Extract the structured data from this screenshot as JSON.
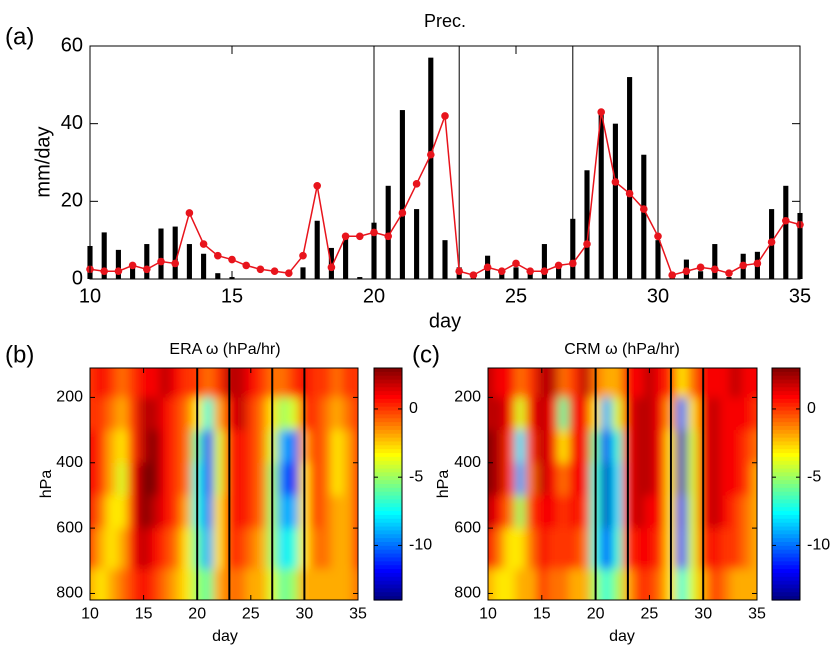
{
  "chart_data": [
    {
      "type": "bar",
      "label": "(a)",
      "title": "Prec.",
      "ylabel": "mm/day",
      "xlabel": "day",
      "x": [
        10,
        10.5,
        11,
        11.5,
        12,
        12.5,
        13,
        13.5,
        14,
        14.5,
        15,
        15.5,
        16,
        16.5,
        17,
        17.5,
        18,
        18.5,
        19,
        19.5,
        20,
        20.5,
        21,
        21.5,
        22,
        22.5,
        23,
        23.5,
        24,
        24.5,
        25,
        25.5,
        26,
        26.5,
        27,
        27.5,
        28,
        28.5,
        29,
        29.5,
        30,
        30.5,
        31,
        31.5,
        32,
        32.5,
        33,
        33.5,
        34,
        34.5,
        35
      ],
      "series": [
        {
          "kind": "bar",
          "color": "#000000",
          "values": [
            8.5,
            12,
            7.5,
            4,
            9,
            13,
            13.5,
            9,
            6.5,
            1.5,
            0.5,
            0,
            0,
            0,
            0,
            3,
            15,
            8,
            11,
            0.5,
            14.5,
            24,
            43.5,
            18,
            57,
            10,
            3,
            1,
            6,
            2,
            3,
            2,
            9,
            3,
            15.5,
            28,
            43.5,
            40,
            52,
            32,
            10,
            0.5,
            5,
            2,
            9,
            0.5,
            6.5,
            7,
            18,
            24,
            17
          ]
        },
        {
          "kind": "line",
          "color": "#e8141c",
          "values": [
            2.5,
            2,
            2,
            3.5,
            2.5,
            4.5,
            4,
            17,
            9,
            6,
            5,
            3.5,
            2.5,
            2,
            1.5,
            6,
            24,
            3,
            11,
            11,
            12,
            11,
            17,
            24.5,
            32,
            42,
            2,
            1,
            3,
            2,
            4,
            2,
            2,
            3.5,
            4,
            9,
            43,
            25,
            22,
            18,
            11,
            1,
            2,
            3,
            2.5,
            1.5,
            3.5,
            4,
            9.5,
            15,
            14
          ]
        }
      ],
      "xlim": [
        10,
        35
      ],
      "xticks": [
        10,
        15,
        20,
        25,
        30,
        35
      ],
      "ylim": [
        0,
        60
      ],
      "yticks": [
        0,
        20,
        40,
        60
      ],
      "vlines": [
        20,
        23,
        27,
        30
      ]
    },
    {
      "type": "contour",
      "label": "(b)",
      "title": "ERA ω (hPa/hr)",
      "ylabel": "hPa",
      "xlabel": "day",
      "x": [
        10,
        11,
        12,
        13,
        14,
        15,
        16,
        17,
        18,
        19,
        20,
        21,
        22,
        23,
        24,
        25,
        26,
        27,
        28,
        29,
        30,
        31,
        32,
        33,
        34,
        35
      ],
      "y": [
        150,
        250,
        350,
        450,
        550,
        650,
        800
      ],
      "z": [
        [
          0,
          1,
          0,
          -1,
          0,
          1,
          1,
          2,
          1,
          0,
          0,
          -1,
          0,
          2,
          2,
          1,
          0,
          -1,
          -1,
          0,
          1,
          0,
          0,
          -1,
          0,
          0
        ],
        [
          0,
          0,
          -1,
          -2,
          0,
          2,
          2,
          1,
          0,
          -1,
          -3,
          -7,
          -2,
          1,
          2,
          0,
          -1,
          -3,
          -5,
          -4,
          0,
          0,
          -1,
          -2,
          -1,
          0
        ],
        [
          1,
          0,
          -2,
          -3,
          0,
          2,
          3,
          1,
          0,
          -1,
          -6,
          -11,
          -4,
          0,
          1,
          0,
          -1,
          -4,
          -9,
          -10,
          -2,
          0,
          -1,
          -3,
          -2,
          0
        ],
        [
          1,
          0,
          -2,
          -4,
          1,
          3,
          3,
          1,
          0,
          -1,
          -7,
          -11,
          -4,
          0,
          1,
          0,
          -1,
          -5,
          -10,
          -12,
          -3,
          0,
          -1,
          -3,
          -2,
          0
        ],
        [
          1,
          -1,
          -3,
          -3,
          1,
          3,
          2,
          1,
          0,
          -2,
          -7,
          -10,
          -3,
          0,
          1,
          0,
          -1,
          -5,
          -9,
          -9,
          -3,
          0,
          -1,
          -2,
          -2,
          0
        ],
        [
          0,
          -2,
          -3,
          -2,
          1,
          2,
          1,
          0,
          -1,
          -3,
          -6,
          -9,
          -3,
          0,
          0,
          -1,
          -2,
          -5,
          -8,
          -7,
          -3,
          -1,
          -1,
          -2,
          -2,
          0
        ],
        [
          -2,
          -3,
          -2,
          -1,
          0,
          1,
          0,
          -1,
          -2,
          -3,
          -5,
          -6,
          -2,
          -1,
          -1,
          -2,
          -2,
          -4,
          -6,
          -5,
          -2,
          -2,
          -2,
          -2,
          -2,
          -1
        ]
      ],
      "xlim": [
        10,
        35
      ],
      "xticks": [
        10,
        15,
        20,
        25,
        30,
        35
      ],
      "ylim": [
        820,
        110
      ],
      "yticks": [
        200,
        400,
        600,
        800
      ],
      "zlim": [
        -14,
        3
      ],
      "zticks": [
        0,
        -5,
        -10
      ],
      "colormap": "jet",
      "vlines": [
        20,
        23,
        27,
        30
      ]
    },
    {
      "type": "contour",
      "label": "(c)",
      "title": "CRM ω (hPa/hr)",
      "ylabel": "hPa",
      "xlabel": "day",
      "x": [
        10,
        11,
        12,
        13,
        14,
        15,
        16,
        17,
        18,
        19,
        20,
        21,
        22,
        23,
        24,
        25,
        26,
        27,
        28,
        29,
        30,
        31,
        32,
        33,
        34,
        35
      ],
      "y": [
        150,
        250,
        350,
        450,
        550,
        650,
        800
      ],
      "z": [
        [
          2,
          1,
          1,
          -1,
          0,
          2,
          2,
          -1,
          0,
          2,
          -1,
          -2,
          -2,
          1,
          1,
          2,
          1,
          0,
          -3,
          -1,
          1,
          1,
          1,
          2,
          1,
          1
        ],
        [
          2,
          2,
          1,
          -4,
          1,
          2,
          1,
          -6,
          1,
          1,
          -3,
          -9,
          -4,
          1,
          2,
          2,
          1,
          -2,
          -10,
          -3,
          1,
          2,
          1,
          1,
          1,
          0
        ],
        [
          3,
          2,
          0,
          -8,
          0,
          2,
          1,
          -3,
          1,
          1,
          -6,
          -12,
          -7,
          1,
          2,
          2,
          1,
          -3,
          -13,
          -4,
          1,
          2,
          1,
          1,
          0,
          -1
        ],
        [
          3,
          2,
          0,
          -9,
          -1,
          2,
          1,
          -1,
          1,
          1,
          -7,
          -13,
          -8,
          1,
          2,
          2,
          1,
          -3,
          -13,
          -4,
          1,
          2,
          1,
          1,
          0,
          -2
        ],
        [
          2,
          1,
          -1,
          -5,
          0,
          1,
          1,
          0,
          1,
          0,
          -7,
          -13,
          -8,
          1,
          2,
          1,
          1,
          -3,
          -12,
          -4,
          1,
          2,
          1,
          0,
          -1,
          -2
        ],
        [
          1,
          -1,
          -3,
          -3,
          -1,
          1,
          0,
          0,
          0,
          -1,
          -7,
          -11,
          -7,
          0,
          1,
          1,
          0,
          -3,
          -11,
          -4,
          0,
          1,
          0,
          0,
          -1,
          -2
        ],
        [
          -2,
          -3,
          -3,
          -2,
          -2,
          0,
          -1,
          -1,
          -2,
          -2,
          -5,
          -7,
          -5,
          -2,
          0,
          0,
          -1,
          -3,
          -7,
          -4,
          -2,
          0,
          -1,
          -2,
          -2,
          -2
        ]
      ],
      "xlim": [
        10,
        35
      ],
      "xticks": [
        10,
        15,
        20,
        25,
        30,
        35
      ],
      "ylim": [
        820,
        110
      ],
      "yticks": [
        200,
        400,
        600,
        800
      ],
      "zlim": [
        -14,
        3
      ],
      "zticks": [
        0,
        -5,
        -10
      ],
      "colormap": "jet",
      "vlines": [
        20,
        23,
        27,
        30
      ]
    }
  ]
}
